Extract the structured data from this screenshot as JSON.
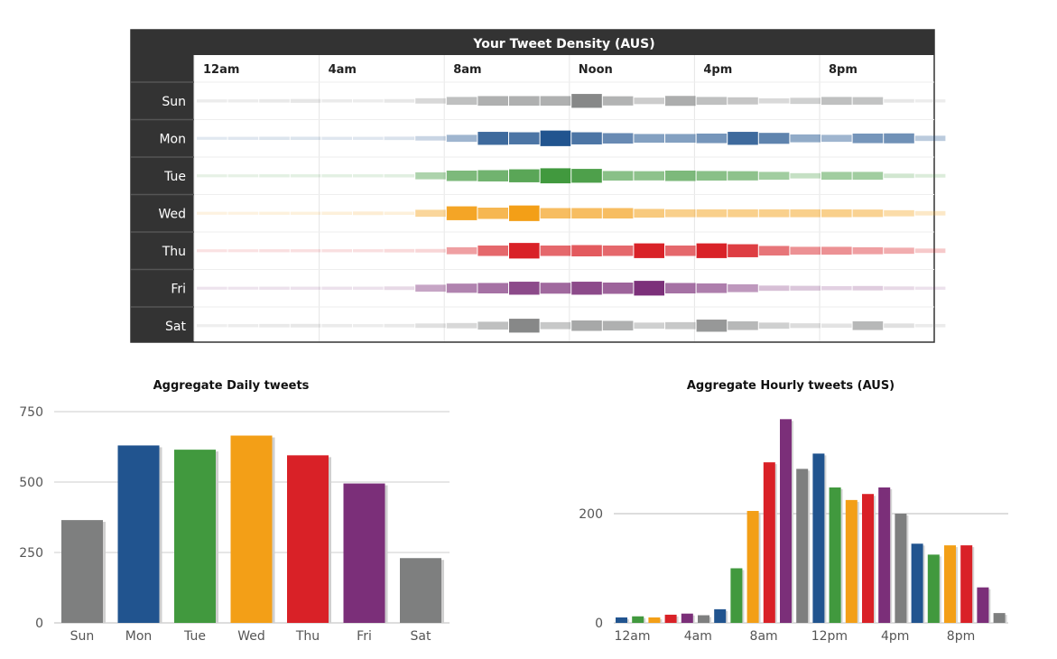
{
  "chart_data": [
    {
      "type": "heatmap",
      "title": "Your Tweet Density (AUS)",
      "x_tick_labels": [
        "12am",
        "4am",
        "8am",
        "Noon",
        "4pm",
        "8pm"
      ],
      "rows": [
        "Sun",
        "Mon",
        "Tue",
        "Wed",
        "Thu",
        "Fri",
        "Sat"
      ],
      "hours": [
        0,
        1,
        2,
        3,
        4,
        5,
        6,
        7,
        8,
        9,
        10,
        11,
        12,
        13,
        14,
        15,
        16,
        17,
        18,
        19,
        20,
        21,
        22,
        23
      ],
      "values": [
        [
          0.02,
          0.02,
          0.04,
          0.06,
          0.03,
          0.02,
          0.05,
          0.15,
          0.3,
          0.4,
          0.4,
          0.4,
          0.65,
          0.38,
          0.22,
          0.42,
          0.3,
          0.26,
          0.14,
          0.2,
          0.3,
          0.28,
          0.05,
          0.02
        ],
        [
          0.01,
          0.02,
          0.03,
          0.03,
          0.02,
          0.02,
          0.04,
          0.1,
          0.25,
          0.6,
          0.55,
          0.75,
          0.55,
          0.45,
          0.35,
          0.35,
          0.4,
          0.6,
          0.48,
          0.3,
          0.25,
          0.4,
          0.42,
          0.15
        ],
        [
          0.01,
          0.01,
          0.02,
          0.02,
          0.02,
          0.02,
          0.03,
          0.25,
          0.45,
          0.5,
          0.6,
          0.72,
          0.65,
          0.4,
          0.38,
          0.45,
          0.4,
          0.38,
          0.3,
          0.15,
          0.3,
          0.3,
          0.1,
          0.05
        ],
        [
          0.01,
          0.01,
          0.02,
          0.02,
          0.03,
          0.05,
          0.03,
          0.25,
          0.65,
          0.5,
          0.75,
          0.45,
          0.45,
          0.45,
          0.35,
          0.3,
          0.3,
          0.3,
          0.3,
          0.3,
          0.3,
          0.28,
          0.2,
          0.1
        ],
        [
          0.01,
          0.01,
          0.02,
          0.02,
          0.02,
          0.02,
          0.04,
          0.05,
          0.25,
          0.45,
          0.75,
          0.45,
          0.5,
          0.45,
          0.7,
          0.45,
          0.7,
          0.6,
          0.4,
          0.3,
          0.3,
          0.25,
          0.2,
          0.1
        ],
        [
          0.01,
          0.01,
          0.02,
          0.02,
          0.02,
          0.02,
          0.05,
          0.25,
          0.38,
          0.45,
          0.6,
          0.48,
          0.6,
          0.5,
          0.7,
          0.45,
          0.4,
          0.3,
          0.15,
          0.12,
          0.08,
          0.1,
          0.05,
          0.02
        ],
        [
          0.01,
          0.02,
          0.04,
          0.05,
          0.03,
          0.02,
          0.04,
          0.1,
          0.15,
          0.3,
          0.65,
          0.25,
          0.45,
          0.4,
          0.2,
          0.25,
          0.55,
          0.35,
          0.2,
          0.12,
          0.08,
          0.35,
          0.1,
          0.03
        ]
      ],
      "row_colors": [
        "#7e7f7f",
        "#21548f",
        "#41993e",
        "#f39f17",
        "#d92127",
        "#7b2f79",
        "#7e7f7f"
      ]
    },
    {
      "type": "bar",
      "title": "Aggregate Daily tweets",
      "categories": [
        "Sun",
        "Mon",
        "Tue",
        "Wed",
        "Thu",
        "Fri",
        "Sat"
      ],
      "values": [
        365,
        630,
        615,
        665,
        595,
        495,
        230
      ],
      "colors": [
        "#7e7f7f",
        "#21548f",
        "#41993e",
        "#f39f17",
        "#d92127",
        "#7b2f79",
        "#7e7f7f"
      ],
      "ylim": [
        0,
        750
      ],
      "y_ticks": [
        "0",
        "250",
        "500",
        "750"
      ],
      "grid": true
    },
    {
      "type": "bar",
      "title": "Aggregate Hourly tweets (AUS)",
      "hours": [
        0,
        1,
        2,
        3,
        4,
        5,
        6,
        7,
        8,
        9,
        10,
        11,
        12,
        13,
        14,
        15,
        16,
        17,
        18,
        19,
        20,
        21,
        22,
        23
      ],
      "values": [
        10,
        12,
        10,
        15,
        17,
        14,
        25,
        100,
        205,
        294,
        373,
        282,
        310,
        248,
        225,
        236,
        248,
        200,
        145,
        125,
        142,
        142,
        65,
        18
      ],
      "colors": [
        "#21548f",
        "#41993e",
        "#f39f17",
        "#d92127",
        "#7b2f79",
        "#7e7f7f",
        "#21548f",
        "#41993e",
        "#f39f17",
        "#d92127",
        "#7b2f79",
        "#7e7f7f",
        "#21548f",
        "#41993e",
        "#f39f17",
        "#d92127",
        "#7b2f79",
        "#7e7f7f",
        "#21548f",
        "#41993e",
        "#f39f17",
        "#d92127",
        "#7b2f79",
        "#7e7f7f"
      ],
      "ylim": [
        0,
        380
      ],
      "y_ticks": [
        "0",
        "200"
      ],
      "x_tick_labels": [
        "12am",
        "4am",
        "8am",
        "12pm",
        "4pm",
        "8pm"
      ],
      "grid": true
    }
  ]
}
